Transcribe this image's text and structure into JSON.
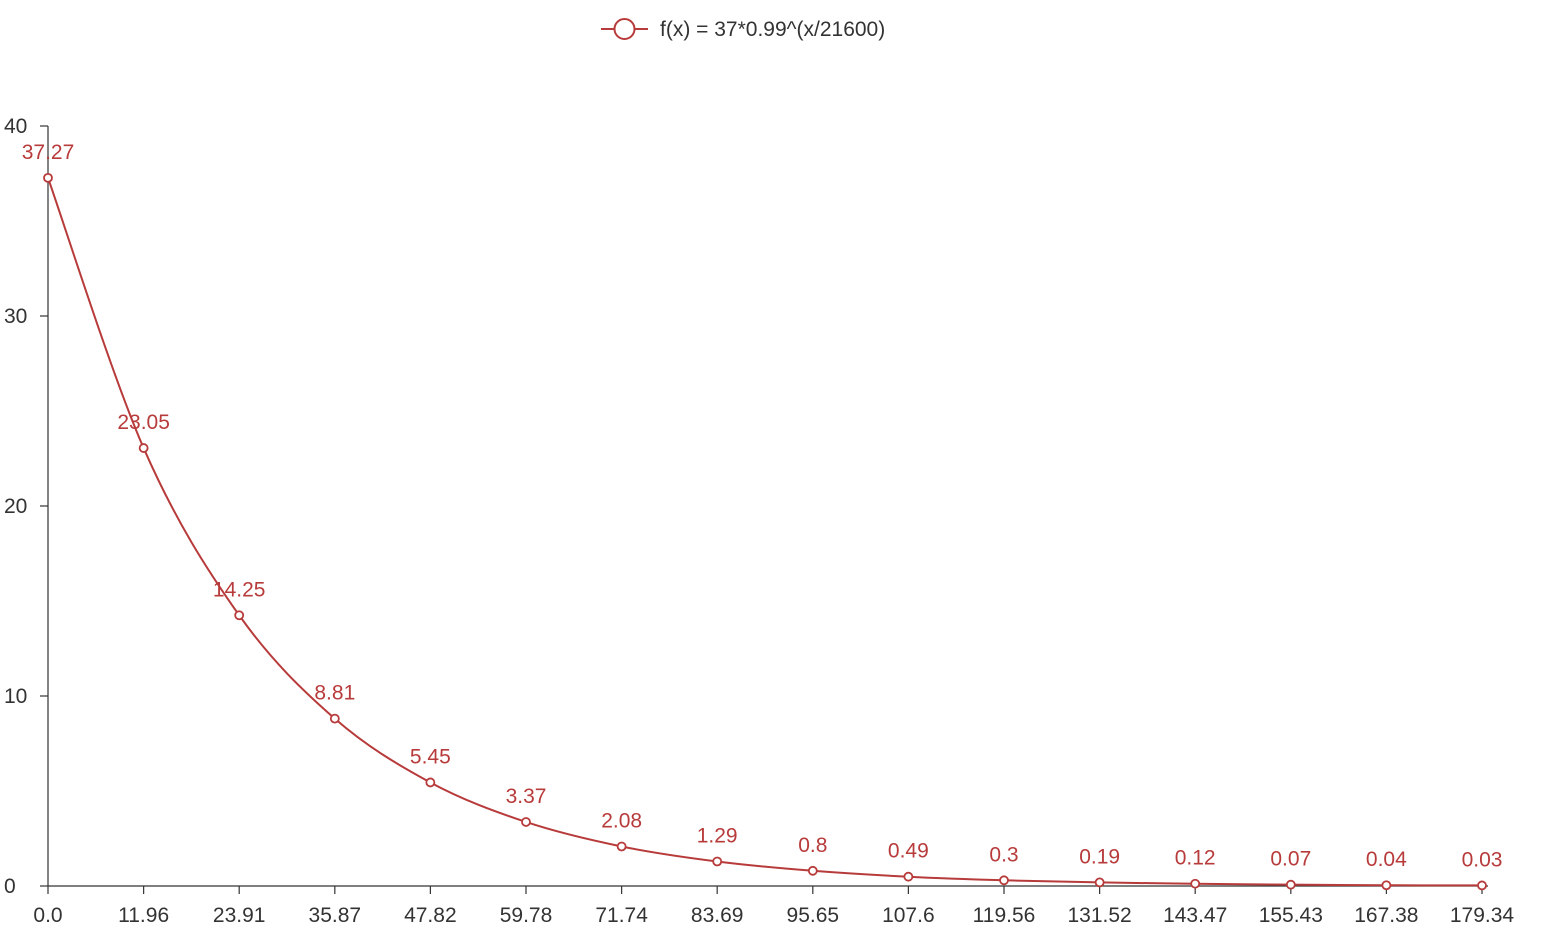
{
  "chart_data": {
    "type": "line",
    "title": "",
    "xlabel": "",
    "ylabel": "",
    "legend": {
      "position": "top-center"
    },
    "grid": false,
    "smooth": true,
    "x": [
      0.0,
      11.96,
      23.91,
      35.87,
      47.82,
      59.78,
      71.74,
      83.69,
      95.65,
      107.6,
      119.56,
      131.52,
      143.47,
      155.43,
      167.38,
      179.34
    ],
    "x_tick_labels": [
      "0.0",
      "11.96",
      "23.91",
      "35.87",
      "47.82",
      "59.78",
      "71.74",
      "83.69",
      "95.65",
      "107.6",
      "119.56",
      "131.52",
      "143.47",
      "155.43",
      "167.38",
      "179.34"
    ],
    "ylim": [
      0,
      40
    ],
    "y_ticks": [
      0,
      10,
      20,
      30,
      40
    ],
    "y_tick_labels": [
      "0",
      "10",
      "20",
      "30",
      "40"
    ],
    "series": [
      {
        "name": "f(x) = 37*0.99^(x/21600)",
        "color": "#b83b3b",
        "values": [
          37.27,
          23.05,
          14.25,
          8.81,
          5.45,
          3.37,
          2.08,
          1.29,
          0.8,
          0.49,
          0.3,
          0.19,
          0.12,
          0.07,
          0.04,
          0.03
        ],
        "labels": [
          "37.27",
          "23.05",
          "14.25",
          "8.81",
          "5.45",
          "3.37",
          "2.08",
          "1.29",
          "0.8",
          "0.49",
          "0.3",
          "0.19",
          "0.12",
          "0.07",
          "0.04",
          "0.03"
        ]
      }
    ]
  }
}
